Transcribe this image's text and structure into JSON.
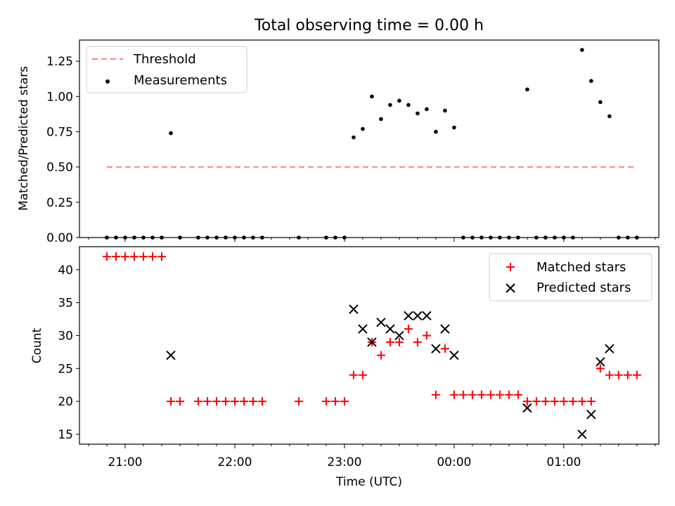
{
  "chart_data": [
    {
      "type": "scatter",
      "title": "Total observing time = 0.00 h",
      "xlabel": "",
      "ylabel": "Matched/Predicted stars",
      "ylim": [
        0.0,
        1.4
      ],
      "xlim": [
        "20:35",
        "01:52"
      ],
      "yticks": [
        0.0,
        0.25,
        0.5,
        0.75,
        1.0,
        1.25
      ],
      "yticklabels": [
        "0.00",
        "0.25",
        "0.50",
        "0.75",
        "1.00",
        "1.25"
      ],
      "legend_position": "top-left",
      "threshold": {
        "name": "Threshold",
        "y": 0.5,
        "x_start": "20:50",
        "x_end": "01:40",
        "color": "#ff7f7f",
        "style": "dashed"
      },
      "series": [
        {
          "name": "Measurements",
          "color": "#000000",
          "marker": "dot",
          "points": [
            [
              "20:50",
              0.0
            ],
            [
              "20:55",
              0.0
            ],
            [
              "21:00",
              0.0
            ],
            [
              "21:05",
              0.0
            ],
            [
              "21:10",
              0.0
            ],
            [
              "21:15",
              0.0
            ],
            [
              "21:20",
              0.0
            ],
            [
              "21:25",
              0.74
            ],
            [
              "21:30",
              0.0
            ],
            [
              "21:40",
              0.0
            ],
            [
              "21:45",
              0.0
            ],
            [
              "21:50",
              0.0
            ],
            [
              "21:55",
              0.0
            ],
            [
              "22:00",
              0.0
            ],
            [
              "22:05",
              0.0
            ],
            [
              "22:10",
              0.0
            ],
            [
              "22:15",
              0.0
            ],
            [
              "22:35",
              0.0
            ],
            [
              "22:50",
              0.0
            ],
            [
              "22:55",
              0.0
            ],
            [
              "23:00",
              0.0
            ],
            [
              "23:05",
              0.71
            ],
            [
              "23:10",
              0.77
            ],
            [
              "23:15",
              1.0
            ],
            [
              "23:20",
              0.84
            ],
            [
              "23:25",
              0.94
            ],
            [
              "23:30",
              0.97
            ],
            [
              "23:35",
              0.94
            ],
            [
              "23:40",
              0.88
            ],
            [
              "23:45",
              0.91
            ],
            [
              "23:50",
              0.75
            ],
            [
              "23:55",
              0.9
            ],
            [
              "00:00",
              0.78
            ],
            [
              "00:05",
              0.0
            ],
            [
              "00:10",
              0.0
            ],
            [
              "00:15",
              0.0
            ],
            [
              "00:20",
              0.0
            ],
            [
              "00:25",
              0.0
            ],
            [
              "00:30",
              0.0
            ],
            [
              "00:35",
              0.0
            ],
            [
              "00:40",
              1.05
            ],
            [
              "00:45",
              0.0
            ],
            [
              "00:50",
              0.0
            ],
            [
              "00:55",
              0.0
            ],
            [
              "01:00",
              0.0
            ],
            [
              "01:05",
              0.0
            ],
            [
              "01:10",
              1.33
            ],
            [
              "01:15",
              1.11
            ],
            [
              "01:20",
              0.96
            ],
            [
              "01:25",
              0.86
            ],
            [
              "01:30",
              0.0
            ],
            [
              "01:35",
              0.0
            ],
            [
              "01:40",
              0.0
            ]
          ]
        }
      ]
    },
    {
      "type": "scatter",
      "title": "",
      "xlabel": "Time (UTC)",
      "ylabel": "Count",
      "ylim": [
        13.5,
        43.5
      ],
      "xlim": [
        "20:35",
        "01:52"
      ],
      "yticks": [
        15,
        20,
        25,
        30,
        35,
        40
      ],
      "yticklabels": [
        "15",
        "20",
        "25",
        "30",
        "35",
        "40"
      ],
      "xticks": [
        "21:00",
        "22:00",
        "23:00",
        "00:00",
        "01:00"
      ],
      "xticklabels": [
        "21:00",
        "22:00",
        "23:00",
        "00:00",
        "01:00"
      ],
      "legend_position": "top-right",
      "series": [
        {
          "name": "Matched stars",
          "color": "#ff0000",
          "marker": "plus",
          "points": [
            [
              "20:50",
              42
            ],
            [
              "20:55",
              42
            ],
            [
              "21:00",
              42
            ],
            [
              "21:05",
              42
            ],
            [
              "21:10",
              42
            ],
            [
              "21:15",
              42
            ],
            [
              "21:20",
              42
            ],
            [
              "21:25",
              20
            ],
            [
              "21:30",
              20
            ],
            [
              "21:40",
              20
            ],
            [
              "21:45",
              20
            ],
            [
              "21:50",
              20
            ],
            [
              "21:55",
              20
            ],
            [
              "22:00",
              20
            ],
            [
              "22:05",
              20
            ],
            [
              "22:10",
              20
            ],
            [
              "22:15",
              20
            ],
            [
              "22:35",
              20
            ],
            [
              "22:50",
              20
            ],
            [
              "22:55",
              20
            ],
            [
              "23:00",
              20
            ],
            [
              "23:05",
              24
            ],
            [
              "23:10",
              24
            ],
            [
              "23:15",
              29
            ],
            [
              "23:20",
              27
            ],
            [
              "23:25",
              29
            ],
            [
              "23:30",
              29
            ],
            [
              "23:35",
              31
            ],
            [
              "23:40",
              29
            ],
            [
              "23:45",
              30
            ],
            [
              "23:50",
              21
            ],
            [
              "23:55",
              28
            ],
            [
              "00:00",
              21
            ],
            [
              "00:05",
              21
            ],
            [
              "00:10",
              21
            ],
            [
              "00:15",
              21
            ],
            [
              "00:20",
              21
            ],
            [
              "00:25",
              21
            ],
            [
              "00:30",
              21
            ],
            [
              "00:35",
              21
            ],
            [
              "00:40",
              20
            ],
            [
              "00:45",
              20
            ],
            [
              "00:50",
              20
            ],
            [
              "00:55",
              20
            ],
            [
              "01:00",
              20
            ],
            [
              "01:05",
              20
            ],
            [
              "01:10",
              20
            ],
            [
              "01:15",
              20
            ],
            [
              "01:20",
              25
            ],
            [
              "01:25",
              24
            ],
            [
              "01:30",
              24
            ],
            [
              "01:35",
              24
            ],
            [
              "01:40",
              24
            ]
          ]
        },
        {
          "name": "Predicted stars",
          "color": "#000000",
          "marker": "x",
          "points": [
            [
              "21:25",
              27
            ],
            [
              "23:05",
              34
            ],
            [
              "23:10",
              31
            ],
            [
              "23:15",
              29
            ],
            [
              "23:20",
              32
            ],
            [
              "23:25",
              31
            ],
            [
              "23:30",
              30
            ],
            [
              "23:35",
              33
            ],
            [
              "23:40",
              33
            ],
            [
              "23:45",
              33
            ],
            [
              "23:50",
              28
            ],
            [
              "23:55",
              31
            ],
            [
              "00:00",
              27
            ],
            [
              "00:40",
              19
            ],
            [
              "01:10",
              15
            ],
            [
              "01:15",
              18
            ],
            [
              "01:20",
              26
            ],
            [
              "01:25",
              28
            ]
          ]
        }
      ]
    }
  ]
}
